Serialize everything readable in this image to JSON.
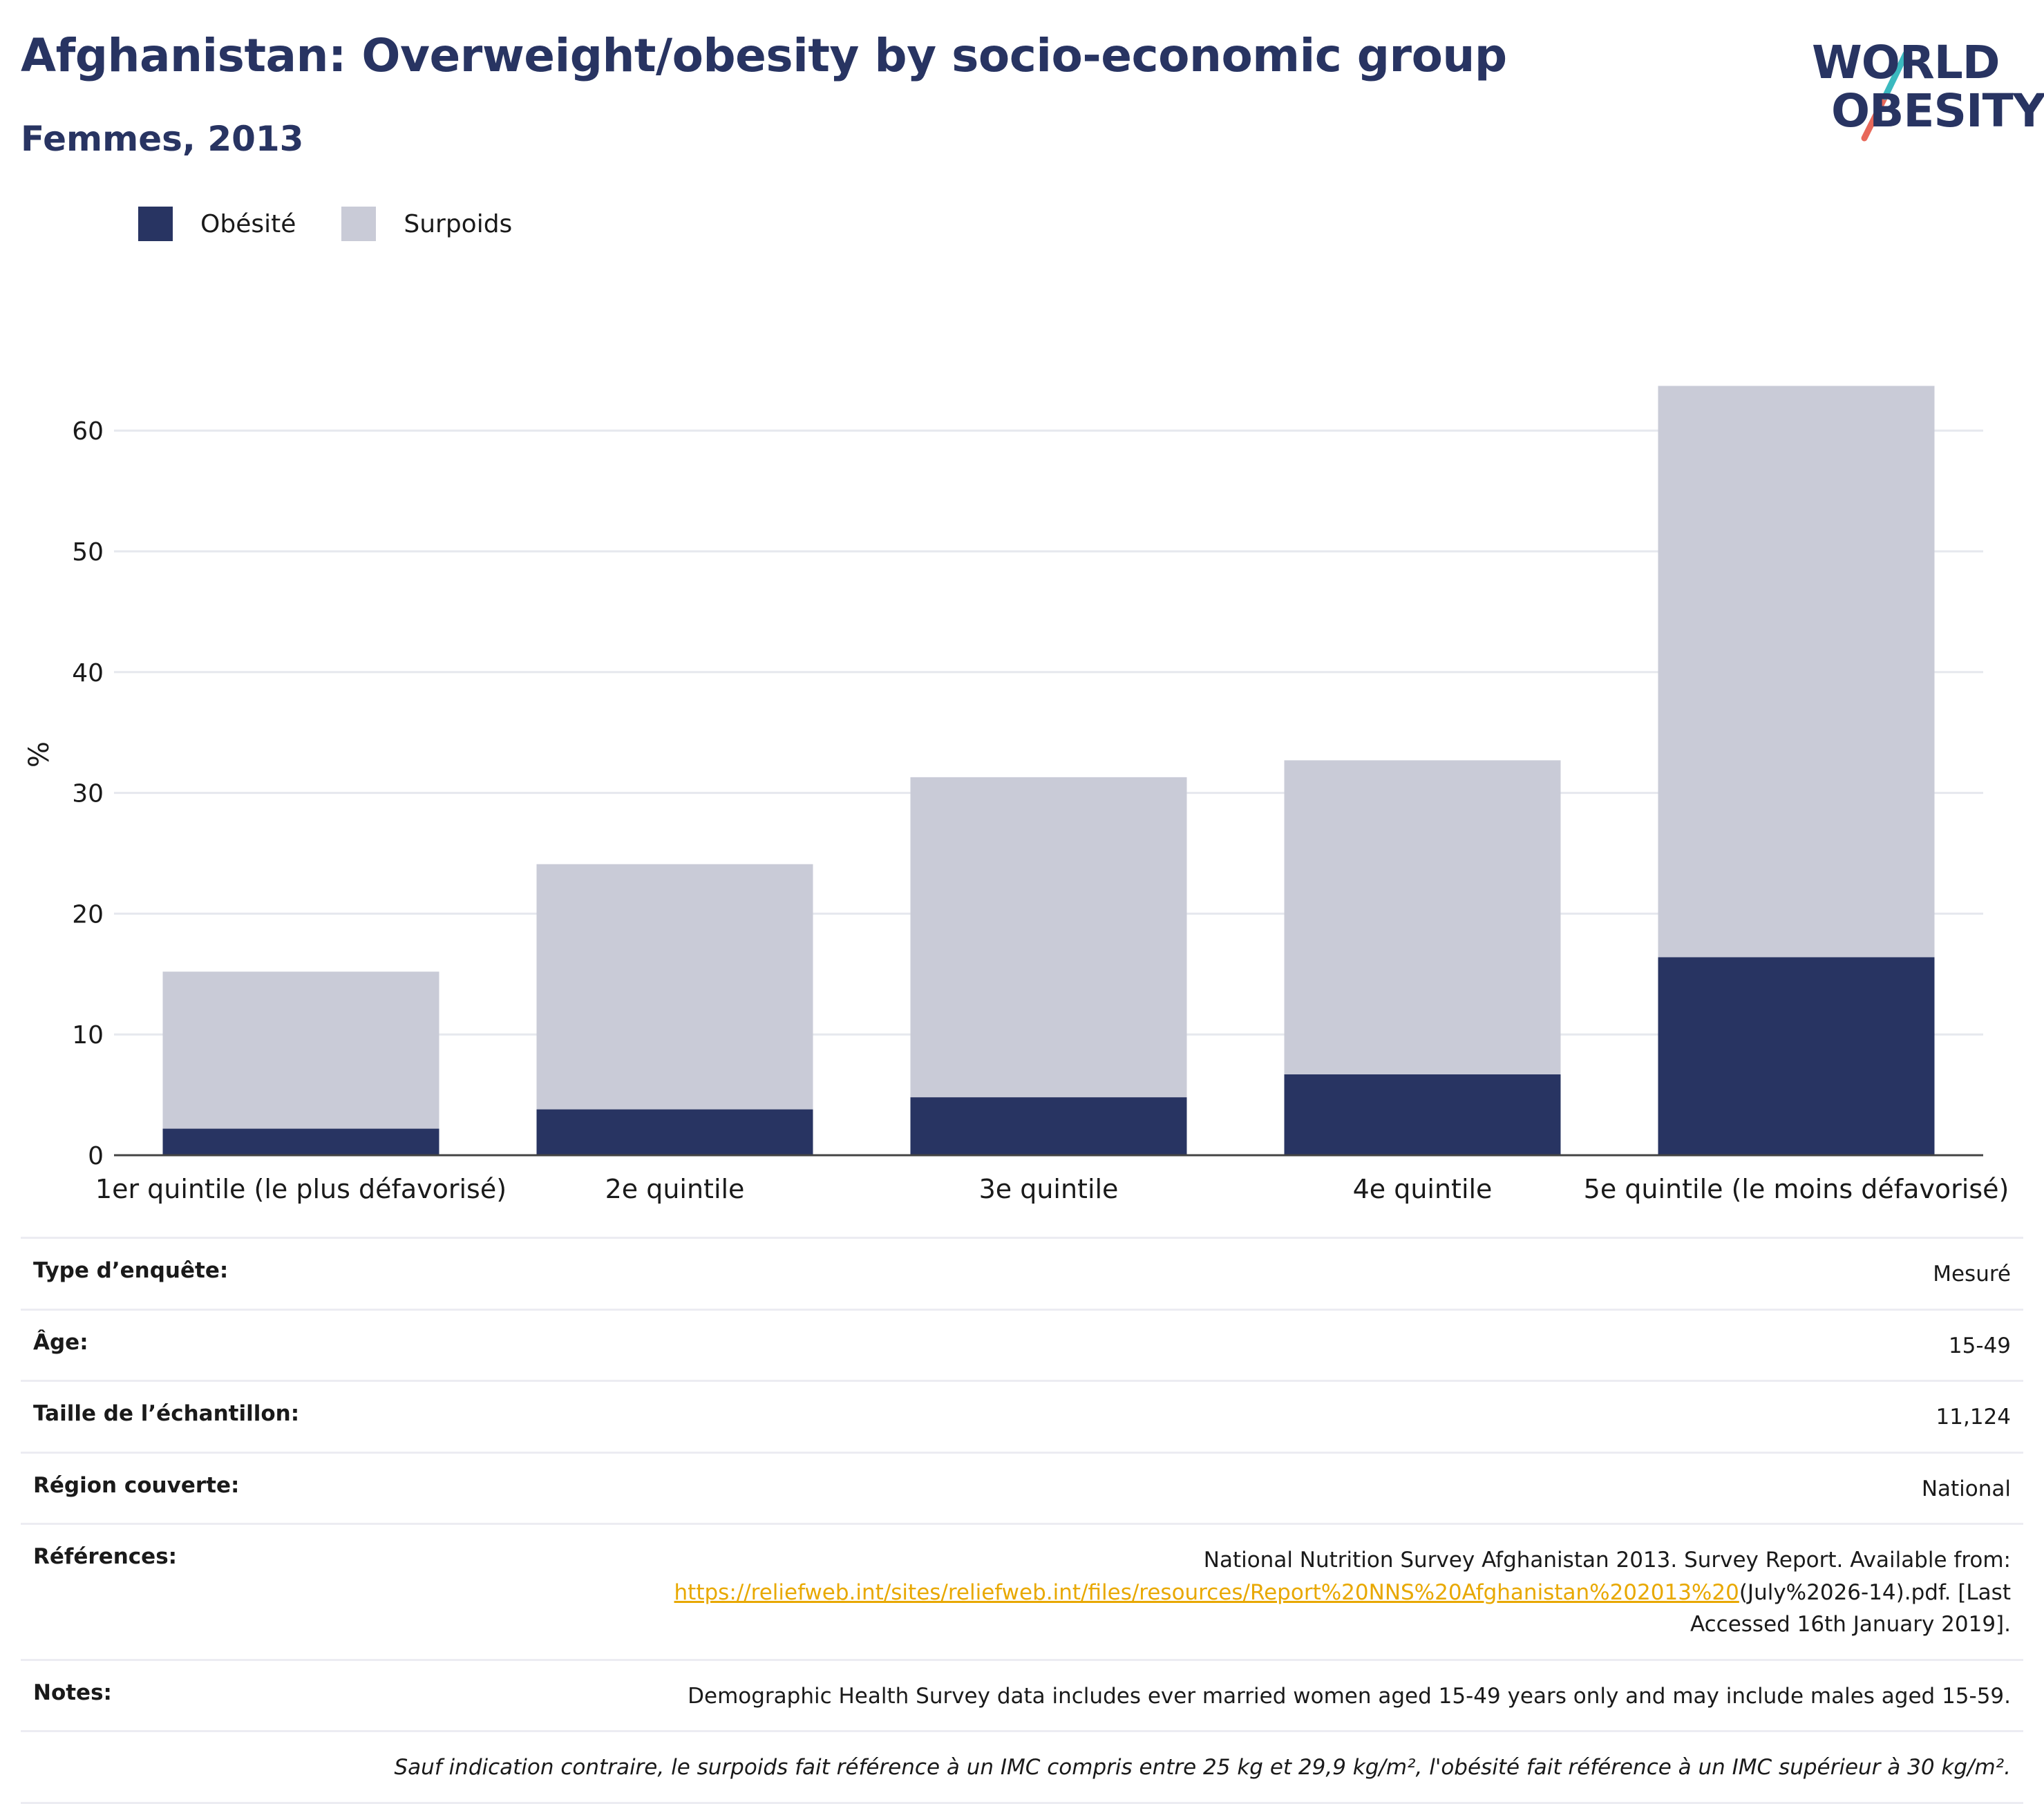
{
  "header": {
    "title": "Afghanistan: Overweight/obesity by socio-economic group",
    "subtitle": "Femmes, 2013"
  },
  "logo": {
    "line1": "WORLD",
    "line2": "OBESITY"
  },
  "colors": {
    "obesity": "#283462",
    "overweight": "#c9cbd7",
    "accent_red": "#e8685a",
    "accent_teal": "#3bb9bf",
    "link": "#e8a800"
  },
  "chart_data": {
    "type": "bar",
    "stacked": true,
    "categories": [
      "1er quintile (le plus défavorisé)",
      "2e quintile",
      "3e quintile",
      "4e quintile",
      "5e quintile (le moins défavorisé)"
    ],
    "series": [
      {
        "name": "Obésité",
        "values": [
          2.2,
          3.8,
          4.8,
          6.7,
          16.4
        ]
      },
      {
        "name": "Surpoids",
        "values": [
          13.0,
          20.3,
          26.5,
          26.0,
          47.3
        ]
      }
    ],
    "ylabel": "%",
    "ylim": [
      0,
      64
    ],
    "yticks": [
      "0",
      "10",
      "20",
      "30",
      "40",
      "50",
      "60"
    ],
    "grid": true,
    "legend_position": "top-left"
  },
  "info": [
    {
      "label": "Type d’enquête:",
      "value": "Mesuré"
    },
    {
      "label": "Âge:",
      "value": "15-49"
    },
    {
      "label": "Taille de l’échantillon:",
      "value": "11,124"
    },
    {
      "label": "Région couverte:",
      "value": "National"
    }
  ],
  "references": {
    "label": "Références:",
    "line1": "National Nutrition Survey Afghanistan 2013. Survey Report. Available from:",
    "link": "https://reliefweb.int/sites/reliefweb.int/files/resources/Report%20NNS%20Afghanistan%202013%20",
    "after_link": "(July%2026-14).pdf. [Last",
    "line3": "Accessed 16th January 2019]."
  },
  "notes": {
    "label": "Notes:",
    "value": "Demographic Health Survey data includes ever married women aged 15-49 years only and may include males aged 15-59."
  },
  "footnote": "Sauf indication contraire, le surpoids fait référence à un IMC compris entre 25 kg et 29,9 kg/m², l'obésité fait référence à un IMC supérieur à 30 kg/m²."
}
